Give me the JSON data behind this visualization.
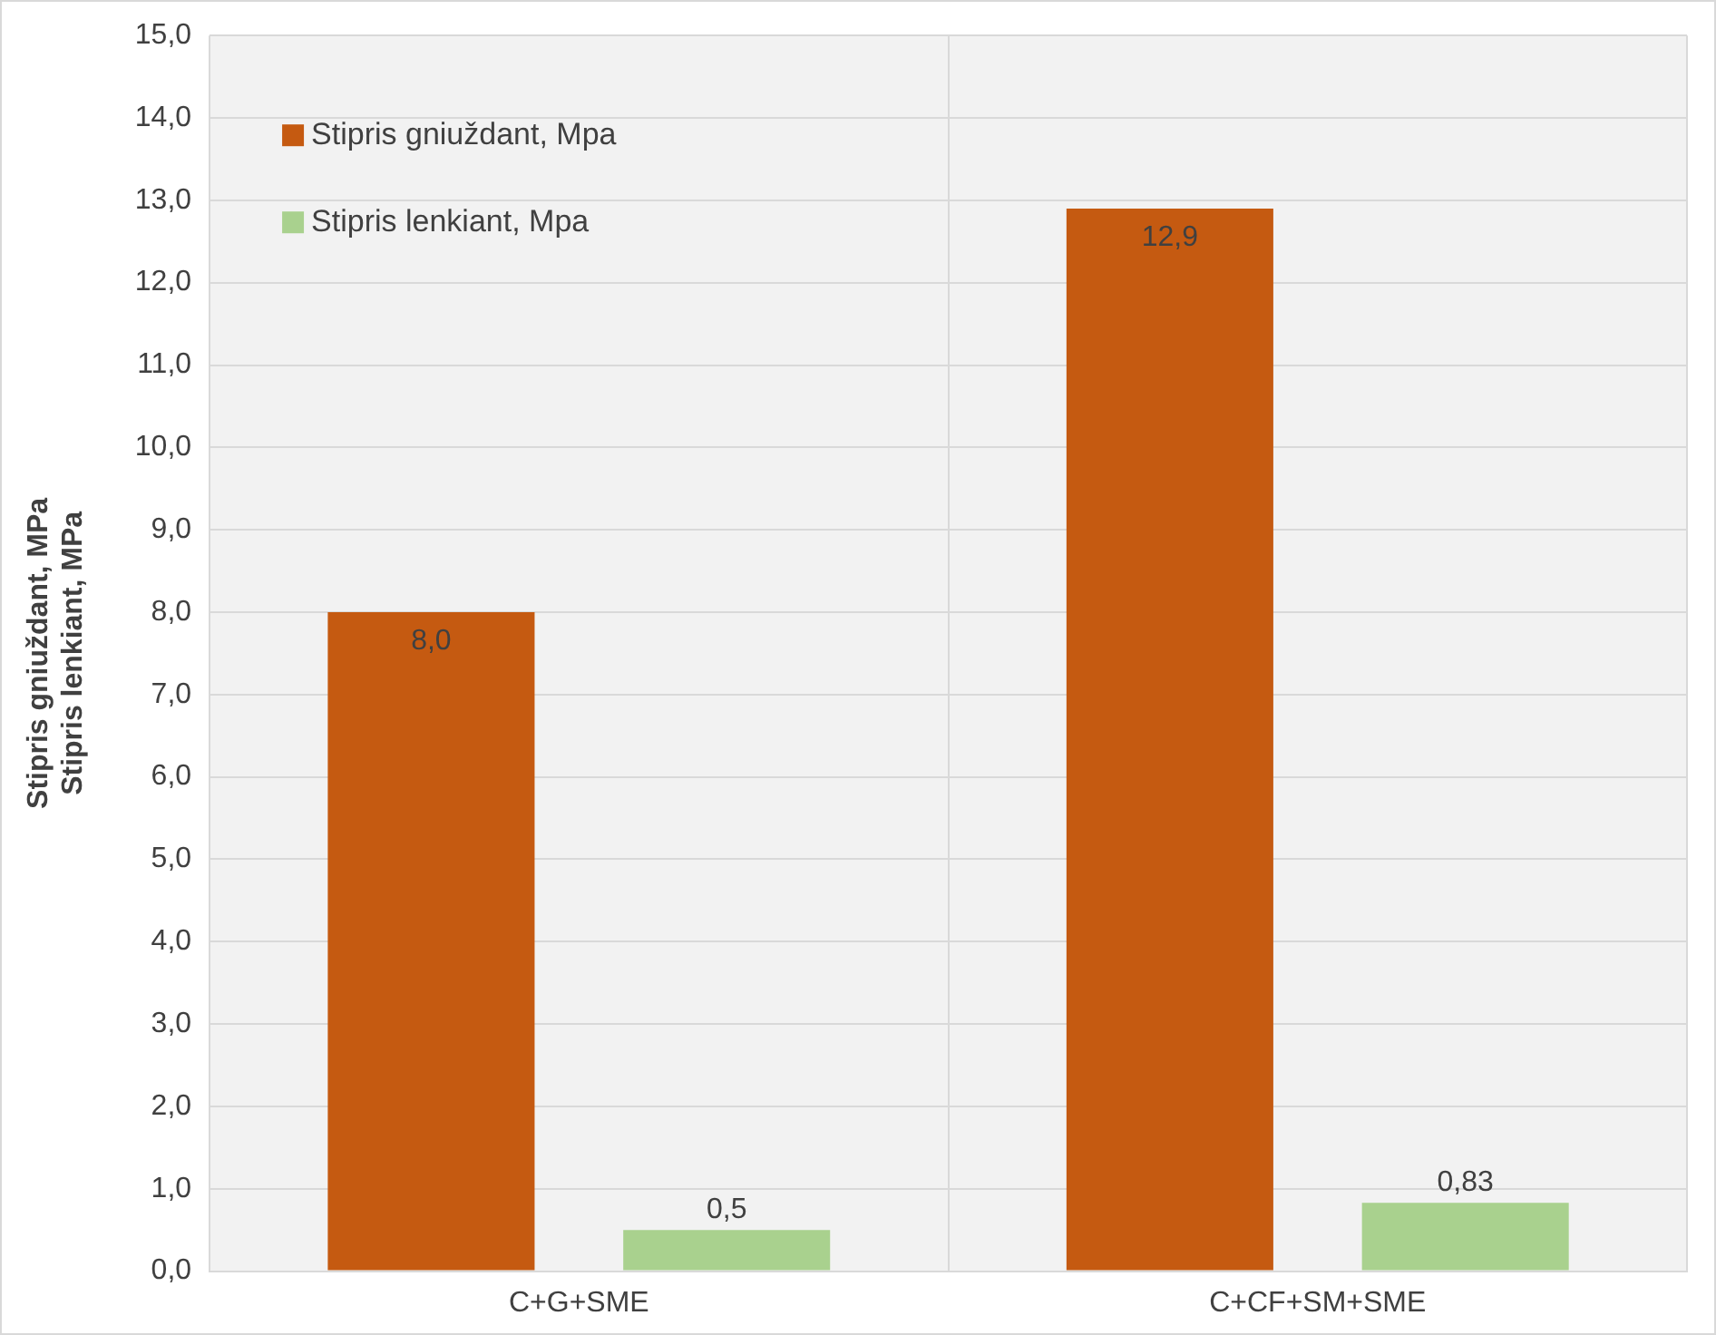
{
  "chart_data": {
    "type": "bar",
    "ylabel": "Stipris gniuždant, MPa\nStipris lenkiant, MPa",
    "categories": [
      "C+G+SME",
      "C+CF+SM+SME"
    ],
    "series": [
      {
        "name": "Stipris gniuždant, Mpa",
        "color": "#c55a11",
        "values": [
          8.0,
          12.9
        ],
        "value_labels": [
          "8,0",
          "12,9"
        ]
      },
      {
        "name": "Stipris lenkiant, Mpa",
        "color": "#a9d18e",
        "values": [
          0.5,
          0.83
        ],
        "value_labels": [
          "0,5",
          "0,83"
        ]
      }
    ],
    "ylim": [
      0,
      15
    ],
    "yticks": [
      {
        "value": 0,
        "label": "0,0"
      },
      {
        "value": 1,
        "label": "1,0"
      },
      {
        "value": 2,
        "label": "2,0"
      },
      {
        "value": 3,
        "label": "3,0"
      },
      {
        "value": 4,
        "label": "4,0"
      },
      {
        "value": 5,
        "label": "5,0"
      },
      {
        "value": 6,
        "label": "6,0"
      },
      {
        "value": 7,
        "label": "7,0"
      },
      {
        "value": 8,
        "label": "8,0"
      },
      {
        "value": 9,
        "label": "9,0"
      },
      {
        "value": 10,
        "label": "10,0"
      },
      {
        "value": 11,
        "label": "11,0"
      },
      {
        "value": 12,
        "label": "12,0"
      },
      {
        "value": 13,
        "label": "13,0"
      },
      {
        "value": 14,
        "label": "14,0"
      },
      {
        "value": 15,
        "label": "15,0"
      }
    ],
    "grid": true,
    "legend": "top left"
  }
}
